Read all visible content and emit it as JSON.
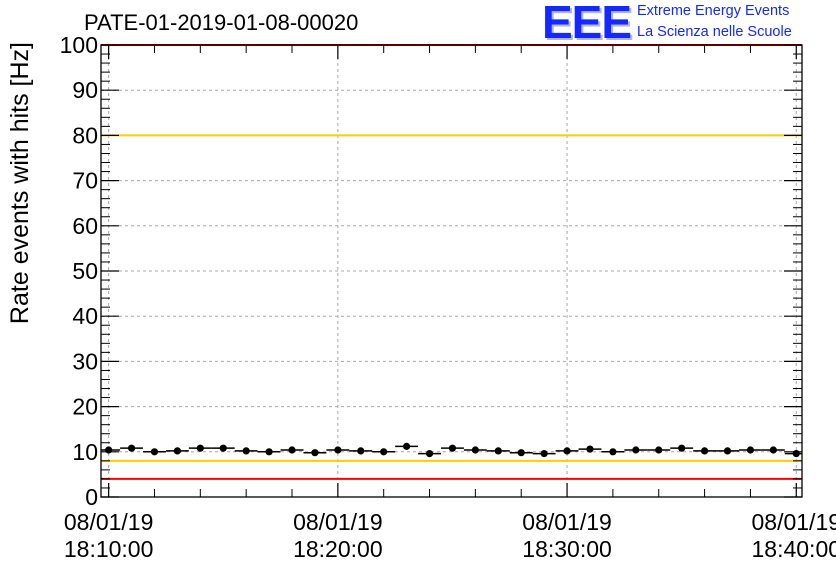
{
  "header": {
    "title": "PATE-01-2019-01-08-00020",
    "logo_mark": "EEE",
    "logo_line1": "Extreme Energy Events",
    "logo_line2": "La Scienza nelle Scuole"
  },
  "chart_data": {
    "type": "scatter",
    "title": "PATE-01-2019-01-08-00020",
    "xlabel": "",
    "ylabel": "Rate events with hits [Hz]",
    "ylim": [
      0,
      100
    ],
    "yticks": [
      0,
      10,
      20,
      30,
      40,
      50,
      60,
      70,
      80,
      90,
      100
    ],
    "xlim": [
      "08/01/19 18:09:40",
      "08/01/19 18:40:15"
    ],
    "xticks": [
      {
        "t": "08/01/19 18:10:00",
        "line1": "08/01/19",
        "line2": "18:10:00"
      },
      {
        "t": "08/01/19 18:20:00",
        "line1": "08/01/19",
        "line2": "18:20:00"
      },
      {
        "t": "08/01/19 18:30:00",
        "line1": "08/01/19",
        "line2": "18:30:00"
      },
      {
        "t": "08/01/19 18:40:00",
        "line1": "08/01/19",
        "line2": "18:40:00"
      }
    ],
    "grid": true,
    "reference_lines": [
      {
        "y": 100,
        "color": "#ff0000"
      },
      {
        "y": 80,
        "color": "#ffcc00"
      },
      {
        "y": 8,
        "color": "#ffcc00"
      },
      {
        "y": 4,
        "color": "#ff0000"
      }
    ],
    "bin_width_seconds": 60,
    "series": [
      {
        "marker_color": "#000000",
        "points": [
          {
            "x": "08/01/19 18:10:00",
            "y": 10.4
          },
          {
            "x": "08/01/19 18:11:00",
            "y": 10.8
          },
          {
            "x": "08/01/19 18:12:00",
            "y": 10.0
          },
          {
            "x": "08/01/19 18:13:00",
            "y": 10.2
          },
          {
            "x": "08/01/19 18:14:00",
            "y": 10.8
          },
          {
            "x": "08/01/19 18:15:00",
            "y": 10.8
          },
          {
            "x": "08/01/19 18:16:00",
            "y": 10.2
          },
          {
            "x": "08/01/19 18:17:00",
            "y": 10.0
          },
          {
            "x": "08/01/19 18:18:00",
            "y": 10.4
          },
          {
            "x": "08/01/19 18:19:00",
            "y": 9.8
          },
          {
            "x": "08/01/19 18:20:00",
            "y": 10.4
          },
          {
            "x": "08/01/19 18:21:00",
            "y": 10.2
          },
          {
            "x": "08/01/19 18:22:00",
            "y": 10.0
          },
          {
            "x": "08/01/19 18:23:00",
            "y": 11.2
          },
          {
            "x": "08/01/19 18:24:00",
            "y": 9.6
          },
          {
            "x": "08/01/19 18:25:00",
            "y": 10.8
          },
          {
            "x": "08/01/19 18:26:00",
            "y": 10.4
          },
          {
            "x": "08/01/19 18:27:00",
            "y": 10.2
          },
          {
            "x": "08/01/19 18:28:00",
            "y": 9.8
          },
          {
            "x": "08/01/19 18:29:00",
            "y": 9.6
          },
          {
            "x": "08/01/19 18:30:00",
            "y": 10.2
          },
          {
            "x": "08/01/19 18:31:00",
            "y": 10.6
          },
          {
            "x": "08/01/19 18:32:00",
            "y": 10.0
          },
          {
            "x": "08/01/19 18:33:00",
            "y": 10.4
          },
          {
            "x": "08/01/19 18:34:00",
            "y": 10.4
          },
          {
            "x": "08/01/19 18:35:00",
            "y": 10.8
          },
          {
            "x": "08/01/19 18:36:00",
            "y": 10.2
          },
          {
            "x": "08/01/19 18:37:00",
            "y": 10.2
          },
          {
            "x": "08/01/19 18:38:00",
            "y": 10.4
          },
          {
            "x": "08/01/19 18:39:00",
            "y": 10.4
          },
          {
            "x": "08/01/19 18:40:00",
            "y": 9.6
          }
        ]
      }
    ]
  }
}
